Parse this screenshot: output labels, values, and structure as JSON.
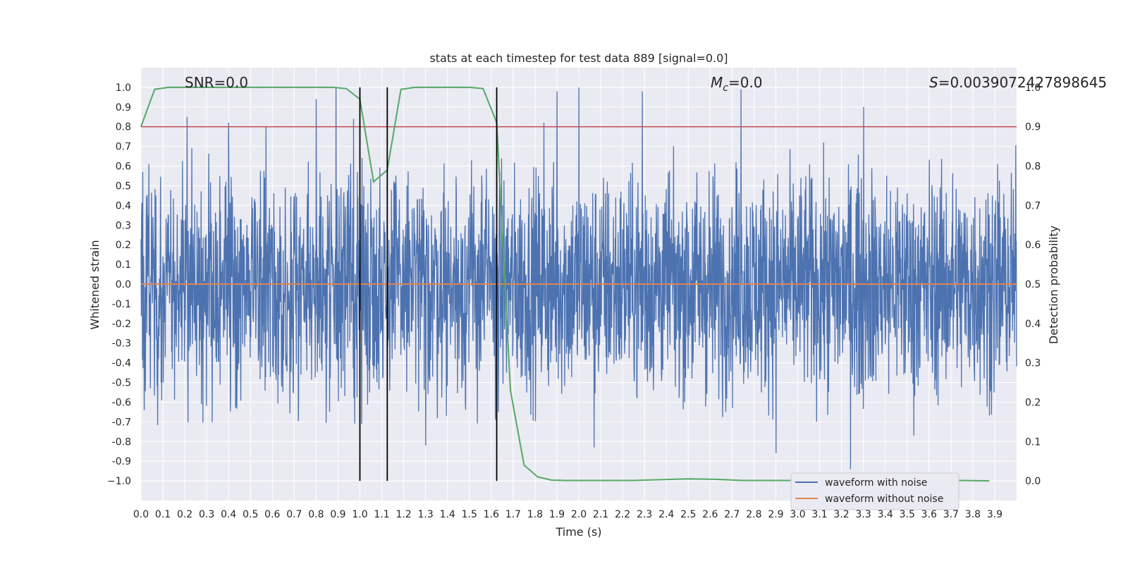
{
  "chart_data": {
    "type": "line",
    "title": "stats at each timestep for test data 889 [signal=0.0]",
    "xlabel": "Time (s)",
    "ylabel": "Whitened strain",
    "y2label": "Detection probability",
    "xlim": [
      0.0,
      4.0
    ],
    "ylim": [
      -1.1,
      1.1
    ],
    "y2lim": [
      -0.05,
      1.05
    ],
    "grid": true,
    "x_ticks": [
      "0.0",
      "0.1",
      "0.2",
      "0.3",
      "0.4",
      "0.5",
      "0.6",
      "0.7",
      "0.8",
      "0.9",
      "1.0",
      "1.1",
      "1.2",
      "1.3",
      "1.4",
      "1.5",
      "1.6",
      "1.7",
      "1.8",
      "1.9",
      "2.0",
      "2.1",
      "2.2",
      "2.3",
      "2.4",
      "2.5",
      "2.6",
      "2.7",
      "2.8",
      "2.9",
      "3.0",
      "3.1",
      "3.2",
      "3.3",
      "3.4",
      "3.5",
      "3.6",
      "3.7",
      "3.8",
      "3.9"
    ],
    "y_ticks": [
      "1.0",
      "0.9",
      "0.8",
      "0.7",
      "0.6",
      "0.5",
      "0.4",
      "0.3",
      "0.2",
      "0.1",
      "0.0",
      "-0.1",
      "-0.2",
      "-0.3",
      "-0.4",
      "-0.5",
      "-0.6",
      "-0.7",
      "-0.8",
      "-0.9",
      "−1.0"
    ],
    "y2_ticks": [
      "1.0",
      "0.9",
      "0.8",
      "0.7",
      "0.6",
      "0.5",
      "0.4",
      "0.3",
      "0.2",
      "0.1",
      "0.0"
    ],
    "annotations": {
      "snr": "SNR=0.0",
      "mc_symbol": "M",
      "mc_sub": "c",
      "mc_value": "=0.0",
      "s_symbol": "S",
      "s_value": "=0.0039072427898645"
    },
    "legend": {
      "placement": "lower-right",
      "entries": [
        "waveform with noise",
        "waveform without noise"
      ]
    },
    "colors": {
      "noise": "#4c72b0",
      "clean": "#dd8452",
      "prob": "#55a868",
      "threshold": "#c44e52",
      "markers": "#000000",
      "plot_bg": "#eaeaf2",
      "grid": "#ffffff"
    },
    "threshold_y2": 0.9,
    "vertical_markers_x": [
      1.0,
      1.125,
      1.625
    ],
    "series": [
      {
        "name": "waveform with noise",
        "note_values": "dense noise trace sampled at 1/1024 s, peak envelope shown by spikes",
        "spikes": [
          {
            "x": 0.21,
            "y": 0.85
          },
          {
            "x": 0.4,
            "y": 0.82
          },
          {
            "x": 0.57,
            "y": 0.8
          },
          {
            "x": 0.8,
            "y": 0.94
          },
          {
            "x": 0.89,
            "y": 1.0
          },
          {
            "x": 0.97,
            "y": 0.84
          },
          {
            "x": 1.3,
            "y": -0.82
          },
          {
            "x": 1.84,
            "y": 0.82
          },
          {
            "x": 1.9,
            "y": 0.98
          },
          {
            "x": 2.0,
            "y": 1.0
          },
          {
            "x": 2.07,
            "y": -0.83
          },
          {
            "x": 2.29,
            "y": 0.98
          },
          {
            "x": 2.74,
            "y": 0.99
          },
          {
            "x": 2.9,
            "y": -0.86
          },
          {
            "x": 3.24,
            "y": -0.94
          },
          {
            "x": 3.3,
            "y": 0.9
          },
          {
            "x": 3.53,
            "y": -0.77
          }
        ]
      },
      {
        "name": "waveform without noise",
        "x": [
          0.0,
          4.0
        ],
        "y": [
          0.0,
          0.0
        ]
      },
      {
        "name": "detection probability",
        "axis": "y2",
        "x": [
          0.0,
          0.0625,
          0.125,
          0.1875,
          0.25,
          0.3125,
          0.375,
          0.4375,
          0.5,
          0.5625,
          0.625,
          0.6875,
          0.75,
          0.8125,
          0.875,
          0.9375,
          1.0,
          1.0625,
          1.125,
          1.1875,
          1.25,
          1.3125,
          1.375,
          1.4375,
          1.5,
          1.5625,
          1.625,
          1.6875,
          1.75,
          1.8125,
          1.875,
          1.9375,
          2.0,
          2.125,
          2.25,
          2.375,
          2.5,
          2.625,
          2.75,
          2.875,
          3.0,
          3.125,
          3.25,
          3.375,
          3.5,
          3.625,
          3.75,
          3.875
        ],
        "y": [
          0.9,
          0.995,
          1.0,
          1.0,
          1.0,
          1.0,
          1.0,
          1.0,
          1.0,
          1.0,
          1.0,
          1.0,
          1.0,
          1.0,
          1.0,
          0.997,
          0.97,
          0.76,
          0.79,
          0.995,
          1.0,
          1.0,
          1.0,
          1.0,
          1.0,
          0.997,
          0.91,
          0.23,
          0.04,
          0.01,
          0.002,
          0.001,
          0.001,
          0.001,
          0.001,
          0.003,
          0.005,
          0.004,
          0.001,
          0.001,
          0.001,
          0.001,
          0.001,
          0.001,
          0.001,
          0.001,
          0.001,
          0.0
        ]
      }
    ]
  }
}
